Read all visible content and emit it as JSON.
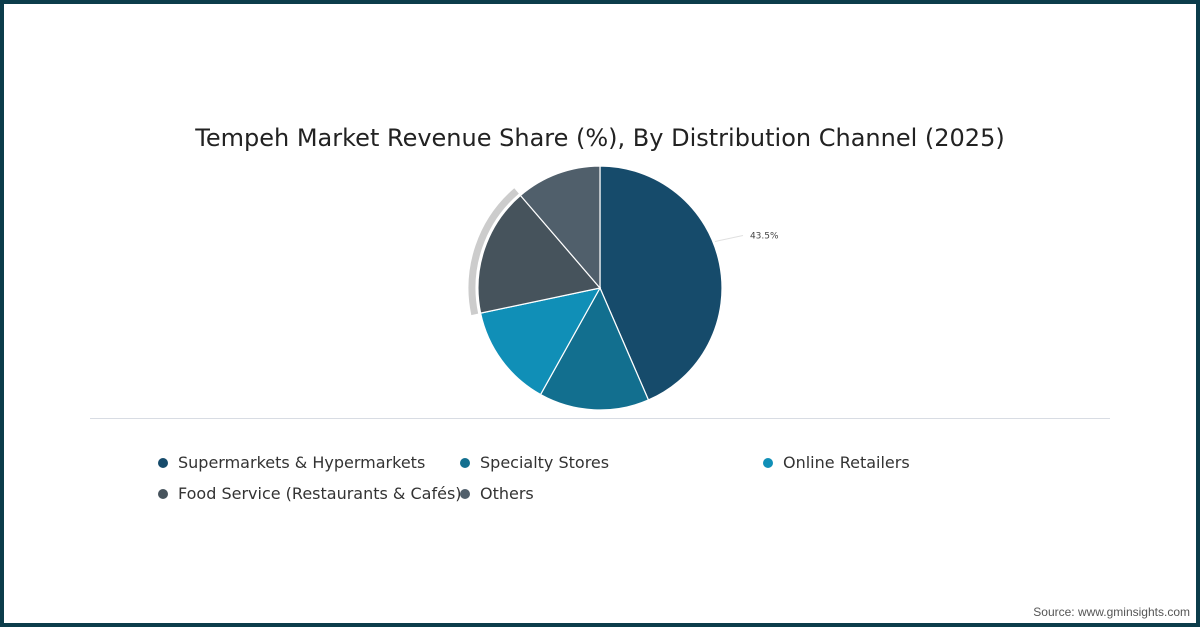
{
  "chart_data": {
    "type": "pie",
    "title": "Tempeh Market Revenue Share (%), By Distribution Channel (2025)",
    "categories": [
      "Supermarkets & Hypermarkets",
      "Specialty Stores",
      "Online Retailers",
      "Food Service (Restaurants & Cafés)",
      "Others"
    ],
    "values": [
      43.5,
      14.6,
      13.6,
      17.0,
      11.3
    ],
    "colors": [
      "#164b6b",
      "#126f8f",
      "#108fb7",
      "#46535c",
      "#505f6b"
    ],
    "data_labels": [
      "43.5%"
    ],
    "highlighted": "Food Service (Restaurants & Cafés)",
    "legend_position": "bottom"
  },
  "source": "Source: www.gminsights.com"
}
